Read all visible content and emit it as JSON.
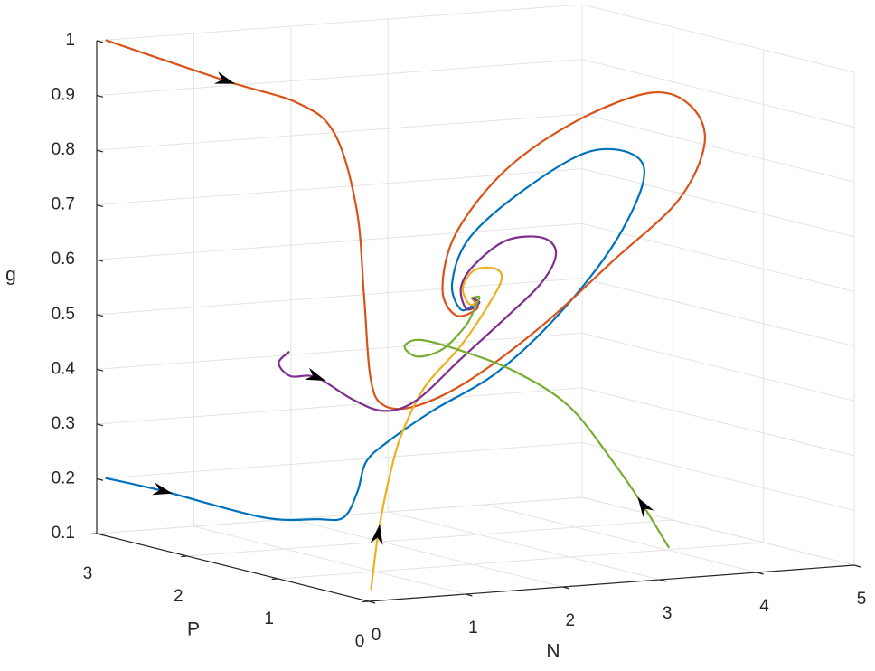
{
  "chart_data": {
    "type": "line3d",
    "xlabel": "N",
    "ylabel": "P",
    "zlabel": "g",
    "xlim": [
      0,
      5
    ],
    "ylim": [
      0,
      3
    ],
    "zlim": [
      0.1,
      1
    ],
    "xticks": [
      0,
      1,
      2,
      3,
      4,
      5
    ],
    "yticks": [
      0,
      1,
      2,
      3
    ],
    "zticks": [
      0.1,
      0.2,
      0.3,
      0.4,
      0.5,
      0.6,
      0.7,
      0.8,
      0.9,
      1
    ],
    "grid": true,
    "series": [
      {
        "color": "#0072BD",
        "x": [
          0.09,
          0.31,
          0.96,
          1.33,
          1.42,
          1.47,
          1.47,
          1.61,
          2.07,
          2.72,
          3.37,
          3.93,
          4.23,
          4.12,
          3.65,
          3.0,
          2.44,
          2.26,
          2.35,
          2.5,
          2.46
        ],
        "y": [
          3,
          2.6,
          2.2,
          2.0,
          1.8,
          1.7,
          1.6,
          1.5,
          1.5,
          1.5,
          1.5,
          1.5,
          1.5,
          1.5,
          1.5,
          1.5,
          1.5,
          1.5,
          1.5,
          1.5,
          1.5
        ],
        "z": [
          0.2,
          0.19,
          0.15,
          0.15,
          0.16,
          0.21,
          0.27,
          0.31,
          0.36,
          0.42,
          0.52,
          0.64,
          0.75,
          0.8,
          0.81,
          0.75,
          0.67,
          0.59,
          0.54,
          0.55,
          0.56
        ]
      },
      {
        "color": "#D95319",
        "x": [
          0.09,
          1.14,
          1.7,
          1.89,
          1.93,
          1.82,
          1.7,
          1.65,
          1.89,
          2.44,
          3.19,
          3.93,
          4.59,
          4.86,
          4.72,
          4.31,
          3.56,
          2.82,
          2.3,
          2.16,
          2.3,
          2.52,
          2.46
        ],
        "y": [
          3,
          2.8,
          2.6,
          2.4,
          2.2,
          2.0,
          1.8,
          1.6,
          1.5,
          1.5,
          1.5,
          1.5,
          1.5,
          1.5,
          1.5,
          1.5,
          1.5,
          1.5,
          1.5,
          1.5,
          1.5,
          1.5,
          1.5
        ],
        "z": [
          1.0,
          0.92,
          0.88,
          0.83,
          0.7,
          0.55,
          0.41,
          0.37,
          0.37,
          0.41,
          0.5,
          0.61,
          0.71,
          0.81,
          0.88,
          0.91,
          0.87,
          0.79,
          0.68,
          0.58,
          0.53,
          0.54,
          0.56
        ]
      },
      {
        "color": "#EDB120",
        "x": [
          0.21,
          0.47,
          0.77,
          1.09,
          1.51,
          2.07,
          2.54,
          2.77,
          2.7,
          2.49,
          2.37,
          2.43,
          2.52,
          2.46
        ],
        "y": [
          0.2,
          0.4,
          0.6,
          0.8,
          1.0,
          1.2,
          1.4,
          1.5,
          1.5,
          1.5,
          1.5,
          1.5,
          1.5,
          1.5
        ],
        "z": [
          0.11,
          0.2,
          0.29,
          0.36,
          0.43,
          0.49,
          0.55,
          0.59,
          0.61,
          0.61,
          0.58,
          0.55,
          0.55,
          0.56
        ]
      },
      {
        "color": "#7E2F8E",
        "x": [
          1.05,
          0.94,
          0.97,
          1.14,
          1.42,
          1.65,
          1.89,
          2.35,
          2.82,
          3.19,
          3.33,
          3.19,
          2.82,
          2.49,
          2.35,
          2.41,
          2.54,
          2.46
        ],
        "y": [
          2,
          2,
          1.9,
          1.8,
          1.7,
          1.6,
          1.5,
          1.5,
          1.5,
          1.5,
          1.5,
          1.5,
          1.5,
          1.5,
          1.5,
          1.5,
          1.5,
          1.5
        ],
        "z": [
          0.46,
          0.44,
          0.42,
          0.42,
          0.38,
          0.36,
          0.38,
          0.45,
          0.52,
          0.58,
          0.63,
          0.66,
          0.66,
          0.62,
          0.58,
          0.54,
          0.55,
          0.56
        ]
      },
      {
        "color": "#77AC30",
        "x": [
          3.56,
          3.48,
          3.37,
          3.09,
          2.72,
          2.26,
          1.93,
          1.77,
          1.9,
          2.16,
          2.4,
          2.49,
          2.54,
          2.46
        ],
        "y": [
          0.5,
          0.7,
          0.9,
          1.1,
          1.3,
          1.4,
          1.5,
          1.5,
          1.5,
          1.5,
          1.5,
          1.5,
          1.5,
          1.5
        ],
        "z": [
          0.13,
          0.2,
          0.27,
          0.37,
          0.43,
          0.47,
          0.49,
          0.48,
          0.46,
          0.47,
          0.51,
          0.54,
          0.56,
          0.56
        ]
      }
    ]
  }
}
